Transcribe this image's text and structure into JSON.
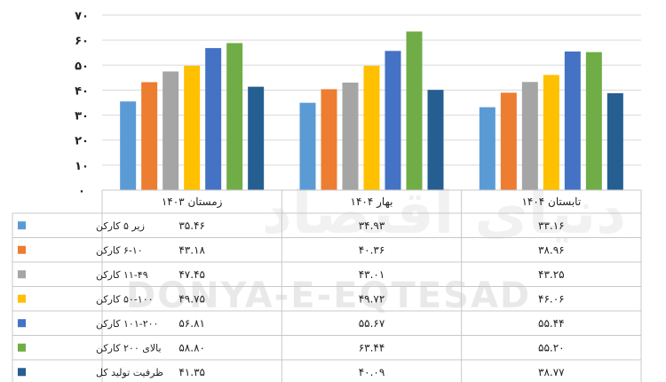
{
  "watermark": {
    "latin": "DONYA-E-EQTESAD",
    "persian": "دنیای اقتصاد"
  },
  "chart_data": {
    "type": "bar",
    "title": "",
    "xlabel": "",
    "ylabel": "",
    "ylim": [
      0,
      70
    ],
    "yticks": [
      "۰",
      "۱۰",
      "۲۰",
      "۳۰",
      "۴۰",
      "۵۰",
      "۶۰",
      "۷۰"
    ],
    "grid": true,
    "legend_placement": "table-left",
    "categories": [
      "زمستان ۱۴۰۳",
      "بهار ۱۴۰۴",
      "تابستان ۱۴۰۴"
    ],
    "series": [
      {
        "name": "زیر ۵ کارکن",
        "color": "#5b9bd5",
        "values": [
          35.46,
          34.93,
          33.16
        ],
        "labels": [
          "۳۵.۴۶",
          "۳۴.۹۳",
          "۳۳.۱۶"
        ]
      },
      {
        "name": "۶-۱۰ کارکن",
        "color": "#ed7d31",
        "values": [
          43.18,
          40.36,
          38.96
        ],
        "labels": [
          "۴۳.۱۸",
          "۴۰.۳۶",
          "۳۸.۹۶"
        ]
      },
      {
        "name": "۱۱-۴۹ کارکن",
        "color": "#a5a5a5",
        "values": [
          47.45,
          43.01,
          43.25
        ],
        "labels": [
          "۴۷.۴۵",
          "۴۳.۰۱",
          "۴۳.۲۵"
        ]
      },
      {
        "name": "۵۰-۱۰۰ کارکن",
        "color": "#ffc000",
        "values": [
          49.75,
          49.72,
          46.06
        ],
        "labels": [
          "۴۹.۷۵",
          "۴۹.۷۲",
          "۴۶.۰۶"
        ]
      },
      {
        "name": "۱۰۱-۲۰۰ کارکن",
        "color": "#4472c4",
        "values": [
          56.81,
          55.67,
          55.44
        ],
        "labels": [
          "۵۶.۸۱",
          "۵۵.۶۷",
          "۵۵.۴۴"
        ]
      },
      {
        "name": "بالای ۲۰۰ کارکن",
        "color": "#70ad47",
        "values": [
          58.8,
          63.44,
          55.2
        ],
        "labels": [
          "۵۸.۸۰",
          "۶۳.۴۴",
          "۵۵.۲۰"
        ]
      },
      {
        "name": "ظرفیت تولید کل",
        "color": "#255e91",
        "values": [
          41.35,
          40.09,
          38.77
        ],
        "labels": [
          "۴۱.۳۵",
          "۴۰.۰۹",
          "۳۸.۷۷"
        ]
      }
    ]
  }
}
